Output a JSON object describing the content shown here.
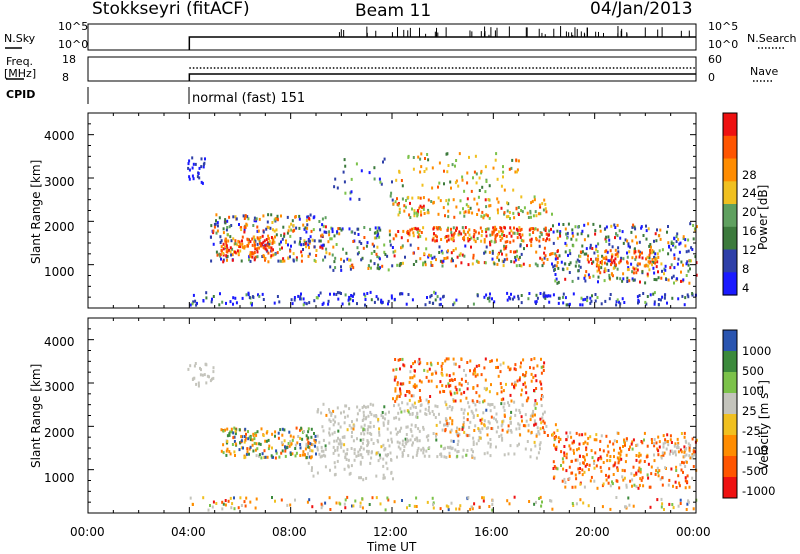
{
  "header": {
    "station": "Stokkseyri (fitACF)",
    "beam": "Beam 11",
    "date": "04/Jan/2013"
  },
  "summary_panels": {
    "nsky_label": "N.Sky",
    "nsky_ticks": [
      "10^5",
      "10^0"
    ],
    "nsearch_label": "N.Search",
    "nsearch_ticks": [
      "10^5",
      "10^0"
    ],
    "freq_label_line1": "Freq.",
    "freq_label_line2": "[MHz]",
    "freq_ticks": [
      "18",
      "8"
    ],
    "nave_label": "Nave",
    "nave_ticks": [
      "60",
      "0"
    ],
    "cpid_label": "CPID",
    "cpid_text": "normal (fast) 151"
  },
  "colors": {
    "power_scale": [
      "#1a1aff",
      "#2e3fa8",
      "#3c7a3c",
      "#5fa05f",
      "#7cc24a",
      "#f0c020",
      "#ff8c00",
      "#ff5500",
      "#ee1111"
    ],
    "velocity_scale": [
      "#ee1111",
      "#ff5500",
      "#ff8c00",
      "#f0c020",
      "#c4c4bc",
      "#7cc24a",
      "#3c8a3c",
      "#2a55b0"
    ]
  },
  "chart_data": [
    {
      "type": "heatmap",
      "panel": "power",
      "ylabel": "Slant Range [km]",
      "yticks": [
        "1000",
        "2000",
        "3000",
        "4000"
      ],
      "ylim": [
        0,
        4500
      ],
      "xlim_hours": [
        0,
        24
      ],
      "colorbar_label": "Power [dB]",
      "colorbar_ticks": [
        "4",
        "8",
        "12",
        "16",
        "20",
        "24",
        "28"
      ],
      "colorbar_range": [
        0,
        30
      ]
    },
    {
      "type": "heatmap",
      "panel": "velocity",
      "ylabel": "Slant Range [km]",
      "yticks": [
        "1000",
        "2000",
        "3000",
        "4000"
      ],
      "ylim": [
        0,
        4500
      ],
      "xlim_hours": [
        0,
        24
      ],
      "colorbar_label": "Velocity [m s",
      "colorbar_label_sup": "-1",
      "colorbar_label_end": "]",
      "colorbar_ticks": [
        "1000",
        "500",
        "100",
        "25",
        "-25",
        "-100",
        "-500",
        "-1000"
      ]
    }
  ],
  "xaxis": {
    "ticks": [
      "00:00",
      "04:00",
      "08:00",
      "12:00",
      "16:00",
      "20:00",
      "00:00"
    ],
    "label": "Time UT"
  }
}
